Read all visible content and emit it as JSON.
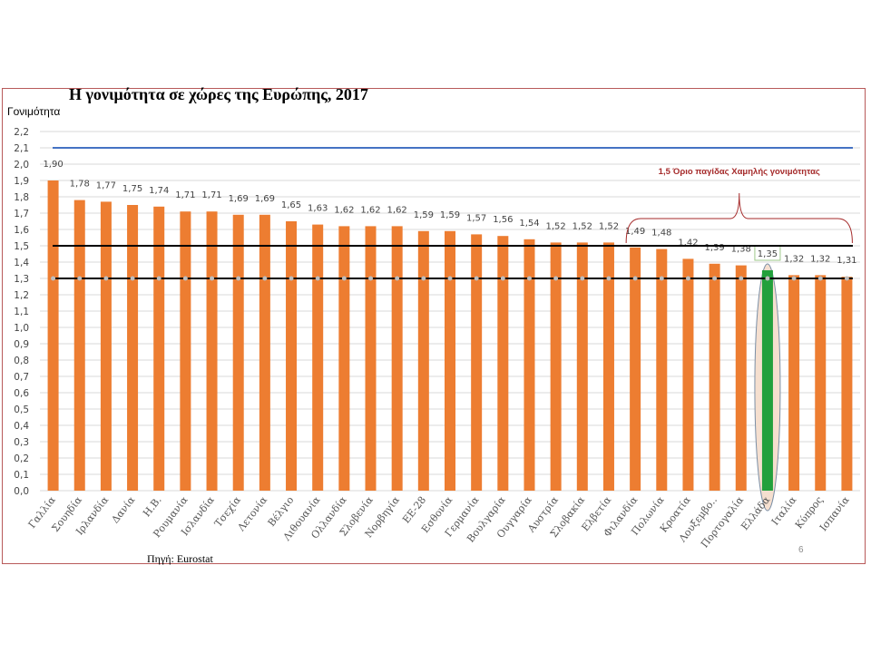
{
  "page_number": "6",
  "source": "Πηγή: Eurostat",
  "chart_data": {
    "type": "bar",
    "title": "Η γονιμότητα σε χώρες της Ευρώπης, 2017",
    "ylabel": "Γονιμότητα",
    "xlabel": "",
    "ylim": [
      0,
      2.2
    ],
    "ytick_step": 0.1,
    "grid": "horizontal",
    "decimal_separator": ",",
    "categories": [
      "Γαλλία",
      "Σουηδία",
      "Ιρλανδία",
      "Δανία",
      "Η.Β.",
      "Ρουμανία",
      "Ισλανδία",
      "Τσεχία",
      "Λετονία",
      "Βέλγιο",
      "Λιθουανία",
      "Ολλανδία",
      "Σλοβενία",
      "Νορβηγία",
      "ΕΕ-28",
      "Εσθονία",
      "Γερμανία",
      "Βουλγαρία",
      "Ουγγαρία",
      "Αυστρία",
      "Σλοβακία",
      "Ελβετία",
      "Φιλανδία",
      "Πολωνία",
      "Κροατία",
      "Λουξεμβο..",
      "Πορτογαλία",
      "Ελλάδα",
      "Ιταλία",
      "Κύπρος",
      "Ισπανία"
    ],
    "values": [
      1.9,
      1.78,
      1.77,
      1.75,
      1.74,
      1.71,
      1.71,
      1.69,
      1.69,
      1.65,
      1.63,
      1.62,
      1.62,
      1.62,
      1.59,
      1.59,
      1.57,
      1.56,
      1.54,
      1.52,
      1.52,
      1.52,
      1.49,
      1.48,
      1.42,
      1.39,
      1.38,
      1.35,
      1.32,
      1.32,
      1.31
    ],
    "data_labels": [
      "1,90",
      "1,78",
      "1,77",
      "1,75",
      "1,74",
      "1,71",
      "1,71",
      "1,69",
      "1,69",
      "1,65",
      "1,63",
      "1,62",
      "1,62",
      "1,62",
      "1,59",
      "1,59",
      "1,57",
      "1,56",
      "1,54",
      "1,52",
      "1,52",
      "1,52",
      "1,49",
      "1,48",
      "1,42",
      "1,39",
      "1,38",
      "1,35",
      "1,32",
      "1,32",
      "1,31"
    ],
    "highlight_category": "Ελλάδα",
    "reference_lines": [
      {
        "value": 2.1,
        "color": "#4472c4"
      },
      {
        "value": 1.5,
        "color": "#000000"
      },
      {
        "value": 1.3,
        "color": "#000000"
      }
    ],
    "annotation": {
      "text": "1,5 Όριο παγίδας Χαμηλής γονιμότητας",
      "from_category": "Φιλανδία",
      "to_category": "Ισπανία"
    },
    "colors": {
      "bar": "#ed7d31",
      "highlight_bar": "#22a03c",
      "grid": "#d9d9d9",
      "annotation": "#a52a2a",
      "highlight_ellipse_fill": "#f5dfcf",
      "highlight_ellipse_stroke": "#7b8fa6"
    }
  }
}
